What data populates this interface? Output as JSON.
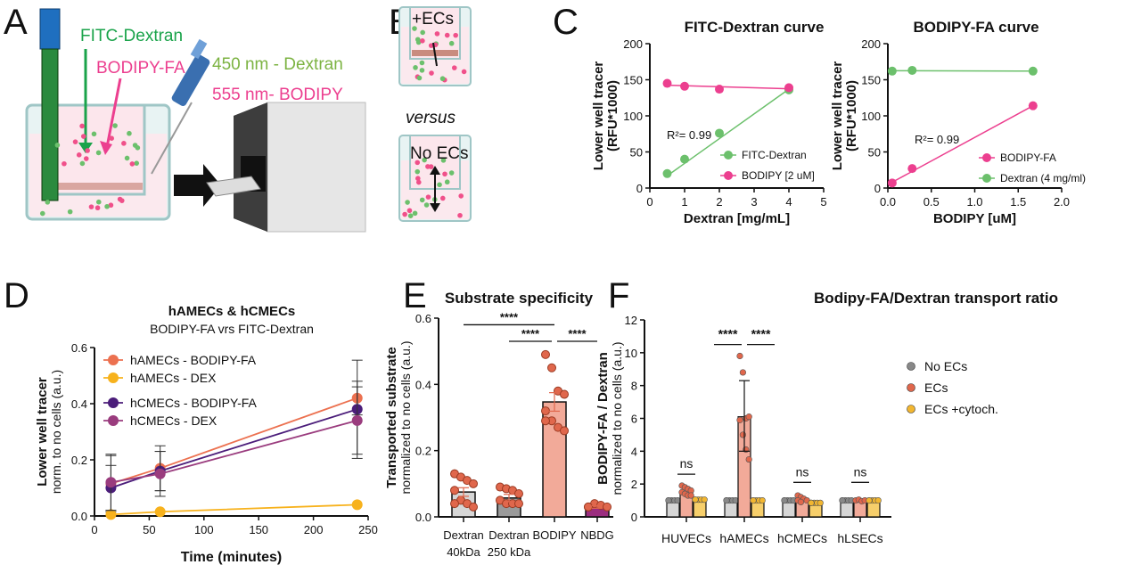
{
  "panels": {
    "A": {
      "label": "A",
      "fitc": "FITC-Dextran",
      "bodipy": "BODIPY-FA",
      "wl1": "450 nm - Dextran",
      "wl2": "555 nm- BODIPY"
    },
    "B": {
      "label": "B",
      "top": "+ECs",
      "versus": "versus",
      "bottom": "No ECs"
    },
    "C": {
      "label": "C"
    },
    "D": {
      "label": "D"
    },
    "E": {
      "label": "E"
    },
    "F": {
      "label": "F"
    }
  },
  "colors": {
    "green": "#6cc06c",
    "pink": "#ec3f8f",
    "olive": "#7cb342",
    "hAMEC_bodipy": "#ec7150",
    "hAMEC_dex": "#f7b21d",
    "hCMEC_bodipy": "#4b1d7a",
    "hCMEC_dex": "#9a3c7e",
    "bar_grey_light": "#d6d6d6",
    "bar_grey": "#9a9a9a",
    "bar_salmon": "#f2aa99",
    "bar_purple": "#9b2d7f",
    "bar_yellow": "#f7cf6b",
    "dot_red": "#e0674c",
    "dot_grey": "#888888",
    "dot_yellow": "#f2b630"
  },
  "chart_data": [
    {
      "id": "C1",
      "type": "scatter",
      "title": "FITC-Dextran curve",
      "xlabel": "Dextran [mg/mL]",
      "ylabel": "Lower well tracer",
      "ylabel2": "(RFU*1000)",
      "xlim": [
        0,
        5
      ],
      "ylim": [
        0,
        200
      ],
      "xticks": [
        "0",
        "1",
        "2",
        "3",
        "4",
        "5"
      ],
      "yticks": [
        "0",
        "50",
        "100",
        "150",
        "200"
      ],
      "annotation": "R²= 0.99",
      "legend_placement": "bottom-right",
      "series": [
        {
          "name": "FITC-Dextran",
          "color": "#6cc06c",
          "x": [
            0.5,
            1,
            2,
            4
          ],
          "y": [
            20,
            40,
            76,
            136
          ],
          "fit": [
            [
              0.5,
              17
            ],
            [
              4,
              137
            ]
          ]
        },
        {
          "name": "BODIPY [2 uM]",
          "color": "#ec3f8f",
          "x": [
            0.5,
            1,
            2,
            4
          ],
          "y": [
            145,
            141,
            137,
            139
          ],
          "fit": [
            [
              0.5,
              142.5
            ],
            [
              4,
              137.5
            ]
          ]
        }
      ]
    },
    {
      "id": "C2",
      "type": "scatter",
      "title": "BODIPY-FA curve",
      "xlabel": "BODIPY [uM]",
      "ylabel": "Lower well tracer",
      "ylabel2": "(RFU*1000)",
      "xlim": [
        0,
        2
      ],
      "ylim": [
        0,
        200
      ],
      "xticks": [
        "0.0",
        "0.5",
        "1.0",
        "1.5",
        "2.0"
      ],
      "yticks": [
        "0",
        "50",
        "100",
        "150",
        "200"
      ],
      "annotation": "R²= 0.99",
      "legend_placement": "bottom-right",
      "series": [
        {
          "name": "BODIPY-FA",
          "color": "#ec3f8f",
          "x": [
            0.05,
            0.28,
            1.67
          ],
          "y": [
            7,
            27,
            114
          ],
          "fit": [
            [
              0.05,
              8
            ],
            [
              1.67,
              114
            ]
          ]
        },
        {
          "name": "Dextran (4 mg/ml)",
          "color": "#6cc06c",
          "x": [
            0.05,
            0.28,
            1.67
          ],
          "y": [
            162,
            163,
            162
          ],
          "fit": [
            [
              0.05,
              162.5
            ],
            [
              1.67,
              162
            ]
          ]
        }
      ]
    },
    {
      "id": "D",
      "type": "line",
      "title": "hAMECs & hCMECs",
      "subtitle": "BODIPY-FA vrs FITC-Dextran",
      "xlabel": "Time (minutes)",
      "ylabel": "Lower well tracer",
      "ylabel2": "norm. to no cells (a.u.)",
      "xlim": [
        0,
        250
      ],
      "ylim": [
        0,
        0.6
      ],
      "xticks": [
        "0",
        "50",
        "100",
        "150",
        "200",
        "250"
      ],
      "yticks": [
        "0.0",
        "0.2",
        "0.4",
        "0.6"
      ],
      "legend_placement": "top-left",
      "series": [
        {
          "name": "hAMECs - BODIPY-FA",
          "color": "#ec7150",
          "x": [
            15,
            60,
            240
          ],
          "y": [
            0.115,
            0.17,
            0.42
          ],
          "err": [
            0.1,
            0.08,
            0.06
          ]
        },
        {
          "name": "hAMECs - DEX",
          "color": "#f7b21d",
          "x": [
            15,
            60,
            240
          ],
          "y": [
            0.005,
            0.015,
            0.04
          ],
          "err": [
            0,
            0,
            0
          ]
        },
        {
          "name": "hCMECs - BODIPY-FA",
          "color": "#4b1d7a",
          "x": [
            15,
            60,
            240
          ],
          "y": [
            0.1,
            0.16,
            0.38
          ],
          "err": [
            0.08,
            0.07,
            0.175
          ]
        },
        {
          "name": "hCMECs - DEX",
          "color": "#9a3c7e",
          "x": [
            15,
            60,
            240
          ],
          "y": [
            0.12,
            0.15,
            0.34
          ],
          "err": [
            0.1,
            0.08,
            0.12
          ]
        }
      ]
    },
    {
      "id": "E",
      "type": "bar",
      "title": "Substrate specificity",
      "ylabel": "Transported substrate",
      "ylabel2": "normalized to no cells (a.u.)",
      "ylim": [
        0,
        0.6
      ],
      "yticks": [
        "0.0",
        "0.2",
        "0.4",
        "0.6"
      ],
      "categories": [
        [
          "Dextran",
          "40kDa"
        ],
        [
          "Dextran",
          "250 kDa"
        ],
        [
          "BODIPY",
          ""
        ],
        [
          "NBDG",
          ""
        ]
      ],
      "values": [
        0.075,
        0.057,
        0.347,
        0.03
      ],
      "sem": [
        0.013,
        0.011,
        0.028,
        0.004
      ],
      "bar_colors": [
        "#d6d6d6",
        "#9a9a9a",
        "#f2aa99",
        "#9b2d7f"
      ],
      "points": [
        [
          0.13,
          0.12,
          0.11,
          0.1,
          0.08,
          0.05,
          0.04,
          0.03,
          0.04
        ],
        [
          0.09,
          0.085,
          0.08,
          0.07,
          0.05,
          0.04,
          0.04,
          0.04
        ],
        [
          0.49,
          0.45,
          0.38,
          0.37,
          0.32,
          0.29,
          0.27,
          0.26,
          0.29
        ],
        [
          0.03,
          0.04,
          0.035,
          0.03,
          0.03
        ]
      ],
      "significance": [
        {
          "from": 0,
          "to": 2,
          "label": "****",
          "y": 0.58
        },
        {
          "from": 1,
          "to": 2,
          "label": "****",
          "y": 0.53
        },
        {
          "from": 2,
          "to": 3,
          "label": "****",
          "y": 0.53
        }
      ]
    },
    {
      "id": "F",
      "type": "bar",
      "title": "Bodipy-FA/Dextran transport ratio",
      "ylabel": "BODIPY-FA / Dextran",
      "ylabel2": "normalized to no cells (a.u.)",
      "ylim": [
        0,
        12
      ],
      "yticks": [
        "0",
        "2",
        "4",
        "6",
        "8",
        "10",
        "12"
      ],
      "legend_placement": "right",
      "categories": [
        "HUVECs",
        "hAMECs",
        "hCMECs",
        "hLSECs"
      ],
      "series": [
        {
          "name": "No ECs",
          "bar": "#d6d6d6",
          "dot": "#888888",
          "values": [
            1,
            1,
            1,
            1
          ]
        },
        {
          "name": "ECs",
          "bar": "#f2aa99",
          "dot": "#e0674c",
          "values": [
            1.55,
            6.1,
            1.1,
            1.0
          ]
        },
        {
          "name": "ECs +cytoch.",
          "bar": "#f7cf6b",
          "dot": "#f2b630",
          "values": [
            1.05,
            1.0,
            0.85,
            1.0
          ]
        }
      ],
      "points_ECs": [
        [
          1.9,
          1.8,
          1.7,
          1.6,
          1.5,
          1.4,
          1.3,
          1.3
        ],
        [
          9.8,
          8.8,
          6.0,
          6.1,
          5.9,
          5.0,
          4.1,
          3.5
        ],
        [
          1.3,
          1.2,
          1.1,
          1.0,
          1.0,
          0.9
        ],
        [
          1.0,
          1.05,
          0.95,
          1.0
        ]
      ],
      "err_hAMECs": [
        4.0,
        8.3
      ],
      "significance": [
        {
          "group": 0,
          "label": "ns",
          "y": 2.6
        },
        {
          "group": 1,
          "label": "****",
          "y": 10.5,
          "pair": "left"
        },
        {
          "group": 1,
          "label": "****",
          "y": 10.5,
          "pair": "right"
        },
        {
          "group": 2,
          "label": "ns",
          "y": 2.1
        },
        {
          "group": 3,
          "label": "ns",
          "y": 2.1
        }
      ]
    }
  ]
}
